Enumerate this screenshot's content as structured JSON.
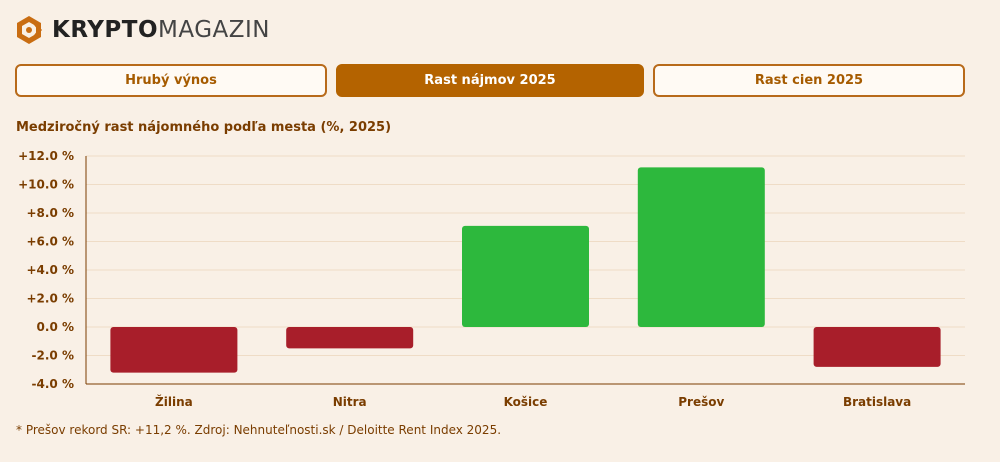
{
  "brand": {
    "name_bold": "KRYPTO",
    "name_light": "MAGAZIN",
    "accent_color": "#c96d12"
  },
  "tabs": [
    {
      "label": "Hrubý výnos",
      "active": false
    },
    {
      "label": "Rast nájmov 2025",
      "active": true
    },
    {
      "label": "Rast cien 2025",
      "active": false
    }
  ],
  "chart_title": "Medziročný rast nájomného podľa mesta (%, 2025)",
  "chart_data": {
    "type": "bar",
    "categories": [
      "Žilina",
      "Nitra",
      "Košice",
      "Prešov",
      "Bratislava"
    ],
    "values": [
      -3.2,
      -1.5,
      7.1,
      11.2,
      -2.8
    ],
    "ylim": [
      -4,
      12
    ],
    "yticks": [
      -4,
      -2,
      0,
      2,
      4,
      6,
      8,
      10,
      12
    ],
    "ytick_labels": [
      "-4.0 %",
      "-2.0 %",
      "0.0 %",
      "+2.0 %",
      "+4.0 %",
      "+6.0 %",
      "+8.0 %",
      "+10.0 %",
      "+12.0 %"
    ],
    "grid": true,
    "colors": {
      "positive": "#2db83d",
      "negative": "#a81e2a",
      "grid": "#efdcc6",
      "axis": "#7a3d00"
    }
  },
  "footnote": "* Prešov rekord SR: +11,2 %. Zdroj: Nehnuteľnosti.sk / Deloitte Rent Index 2025."
}
